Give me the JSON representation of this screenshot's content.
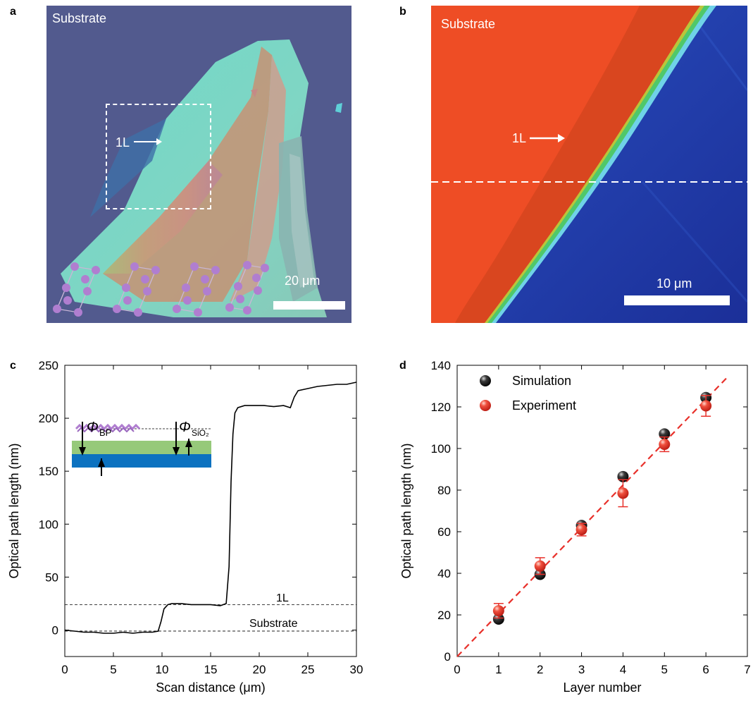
{
  "panels": {
    "a": {
      "letter": "a",
      "substrate_label": "Substrate",
      "layer_label": "1L",
      "scale_label": "20 μm"
    },
    "b": {
      "letter": "b",
      "substrate_label": "Substrate",
      "layer_label": "1L",
      "scale_label": "10 μm"
    },
    "c": {
      "letter": "c",
      "inset": {
        "phi_bp": "Φ",
        "phi_bp_sub": "BP",
        "phi_sio2": "Φ",
        "phi_sio2_sub": "SiO₂"
      },
      "ref_labels": {
        "layer": "1L",
        "substrate": "Substrate"
      }
    },
    "d": {
      "letter": "d"
    }
  },
  "chart_data": [
    {
      "type": "line",
      "panel": "c",
      "xlabel": "Scan distance (μm)",
      "ylabel": "Optical path length (nm)",
      "xlim": [
        0,
        30
      ],
      "ylim": [
        -25,
        250
      ],
      "xticks": [
        0,
        5,
        10,
        15,
        20,
        25,
        30
      ],
      "yticks": [
        0,
        50,
        100,
        150,
        200,
        250
      ],
      "series": [
        {
          "x": [
            0,
            1,
            2,
            3,
            4,
            5,
            6,
            7,
            8,
            9,
            9.6,
            9.9,
            10.2,
            10.6,
            11,
            12,
            13,
            14,
            15,
            16,
            16.6,
            16.9,
            17.1,
            17.3,
            17.5,
            17.8,
            18.5,
            19.5,
            20.5,
            21.5,
            22.5,
            23.2,
            23.6,
            24,
            25,
            26,
            27,
            28,
            29,
            30
          ],
          "y": [
            0,
            -1,
            -2,
            -2,
            -3,
            -3,
            -2,
            -3,
            -2,
            -2,
            -1,
            8,
            20,
            24,
            25,
            25,
            24,
            24,
            24,
            23,
            25,
            60,
            140,
            185,
            205,
            210,
            212,
            212,
            212,
            211,
            212,
            210,
            220,
            226,
            228,
            230,
            231,
            232,
            232,
            234
          ]
        }
      ],
      "reference_lines": [
        {
          "label": "1L",
          "y": 24
        },
        {
          "label": "Substrate",
          "y": -1
        }
      ]
    },
    {
      "type": "scatter",
      "panel": "d",
      "xlabel": "Layer number",
      "ylabel": "Optical path length (nm)",
      "xlim": [
        0,
        7
      ],
      "ylim": [
        0,
        140
      ],
      "xticks": [
        0,
        1,
        2,
        3,
        4,
        5,
        6,
        7
      ],
      "yticks": [
        0,
        20,
        40,
        60,
        80,
        100,
        120,
        140
      ],
      "series": [
        {
          "name": "Simulation",
          "color": "#1a1a1a",
          "x": [
            1,
            2,
            3,
            4,
            5,
            6
          ],
          "y": [
            18,
            39.5,
            63,
            86.5,
            107,
            124.5
          ]
        },
        {
          "name": "Experiment",
          "color": "#e8302a",
          "x": [
            1,
            2,
            3,
            4,
            5,
            6
          ],
          "y": [
            22,
            43.5,
            61,
            78.5,
            102,
            120.5
          ],
          "yerr": [
            3.5,
            4,
            3,
            6.5,
            3.5,
            5
          ]
        }
      ],
      "fit": {
        "slope": 20.6,
        "intercept": 0,
        "x": [
          0,
          6.55
        ],
        "color": "#e8302a"
      },
      "legend_position": "top-left"
    }
  ],
  "colors": {
    "bp_lattice": "#b07ed0",
    "sio2_layer": "#96c97a",
    "si_layer": "#0c72c0",
    "panel_b_bp": "#ee4d25",
    "panel_b_substrate": "#1a3da8"
  }
}
